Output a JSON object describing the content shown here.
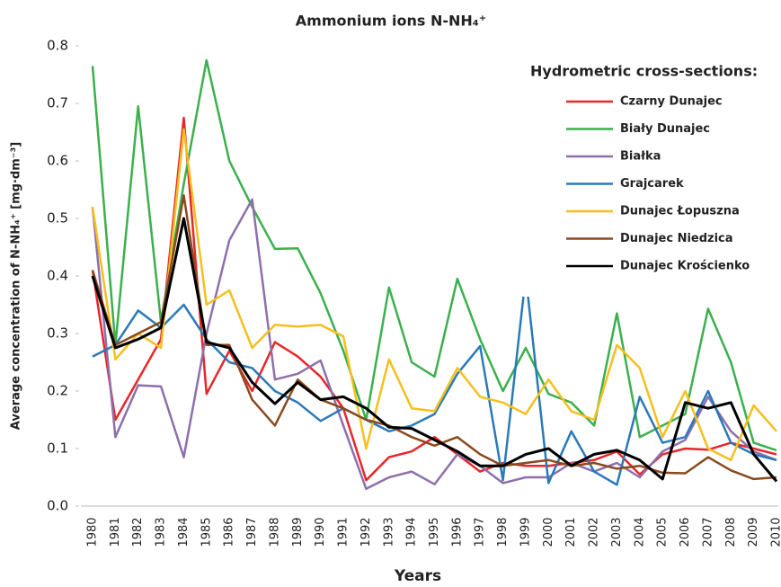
{
  "chart_data": {
    "type": "line",
    "title": "Ammonium ions N-NH₄⁺",
    "x_label": "Years",
    "y_label": "Average concentration of  N-NH₄⁺ [mg·dm⁻³]",
    "legend_title": "Hydrometric cross-sections:",
    "legend_position": "upper right",
    "grid": false,
    "ylim": [
      0,
      0.8
    ],
    "yticks": [
      {
        "value": 0,
        "label": "0.0"
      },
      0.1,
      0.2,
      0.3,
      0.4,
      0.5,
      0.6,
      0.7,
      0.8
    ],
    "categories": [
      "1980",
      "1981",
      "1982",
      "1983",
      "1984",
      "1985",
      "1986",
      "1987",
      "1988",
      "1989",
      "1990",
      "1991",
      "1992",
      "1993",
      "1994",
      "1995",
      "1996",
      "1997",
      "1998",
      "1999",
      "2000",
      "2001",
      "2002",
      "2003",
      "2004",
      "2005",
      "2006",
      "2007",
      "2008",
      "2009",
      "2010"
    ],
    "series": [
      {
        "name": "Czarny Dunajec",
        "color": "#e8262a",
        "values": [
          0.41,
          0.15,
          0.22,
          0.29,
          0.675,
          0.195,
          0.27,
          0.2,
          0.285,
          0.26,
          0.225,
          0.17,
          0.045,
          0.085,
          0.095,
          0.12,
          0.09,
          0.06,
          0.075,
          0.07,
          0.07,
          0.075,
          0.08,
          0.095,
          0.055,
          0.09,
          0.1,
          0.098,
          0.11,
          0.1,
          0.09
        ]
      },
      {
        "name": "Biały Dunajec",
        "color": "#3bb04d",
        "values": [
          0.765,
          0.28,
          0.695,
          0.32,
          0.56,
          0.775,
          0.6,
          0.52,
          0.447,
          0.448,
          0.37,
          0.27,
          0.15,
          0.38,
          0.25,
          0.225,
          0.395,
          0.29,
          0.2,
          0.275,
          0.195,
          0.18,
          0.14,
          0.335,
          0.12,
          0.14,
          0.16,
          0.343,
          0.25,
          0.11,
          0.097
        ]
      },
      {
        "name": "Białka",
        "color": "#8e6fac",
        "values": [
          0.52,
          0.12,
          0.21,
          0.208,
          0.085,
          0.3,
          0.462,
          0.533,
          0.22,
          0.23,
          0.253,
          0.14,
          0.03,
          0.05,
          0.06,
          0.038,
          0.09,
          0.07,
          0.04,
          0.05,
          0.05,
          0.075,
          0.06,
          0.075,
          0.05,
          0.095,
          0.115,
          0.19,
          0.13,
          0.095,
          0.08
        ]
      },
      {
        "name": "Grajcarek",
        "color": "#2a7ab8",
        "values": [
          0.26,
          0.28,
          0.34,
          0.31,
          0.35,
          0.29,
          0.25,
          0.24,
          0.2,
          0.18,
          0.148,
          0.17,
          0.15,
          0.13,
          0.14,
          0.16,
          0.23,
          0.278,
          0.045,
          0.4,
          0.04,
          0.13,
          0.06,
          0.037,
          0.19,
          0.11,
          0.12,
          0.2,
          0.11,
          0.09,
          0.08
        ]
      },
      {
        "name": "Dunajec Łopuszna",
        "color": "#f5bf1f",
        "values": [
          0.52,
          0.255,
          0.3,
          0.275,
          0.655,
          0.35,
          0.375,
          0.275,
          0.315,
          0.312,
          0.315,
          0.295,
          0.1,
          0.255,
          0.17,
          0.165,
          0.24,
          0.19,
          0.18,
          0.16,
          0.22,
          0.165,
          0.15,
          0.28,
          0.24,
          0.12,
          0.2,
          0.1,
          0.08,
          0.175,
          0.13
        ]
      },
      {
        "name": "Dunajec Niedzica",
        "color": "#8b4a1e",
        "values": [
          0.41,
          0.28,
          0.3,
          0.32,
          0.54,
          0.28,
          0.28,
          0.185,
          0.14,
          0.22,
          0.185,
          0.17,
          0.15,
          0.14,
          0.12,
          0.105,
          0.12,
          0.09,
          0.07,
          0.075,
          0.08,
          0.07,
          0.075,
          0.065,
          0.07,
          0.058,
          0.057,
          0.085,
          0.062,
          0.047,
          0.05
        ]
      },
      {
        "name": "Dunajec Krościenko",
        "color": "#000000",
        "values": [
          0.4,
          0.275,
          0.29,
          0.31,
          0.5,
          0.285,
          0.275,
          0.215,
          0.178,
          0.215,
          0.185,
          0.19,
          0.17,
          0.137,
          0.135,
          0.115,
          0.095,
          0.07,
          0.07,
          0.09,
          0.1,
          0.07,
          0.09,
          0.097,
          0.08,
          0.047,
          0.18,
          0.17,
          0.18,
          0.09,
          0.043
        ]
      }
    ]
  }
}
